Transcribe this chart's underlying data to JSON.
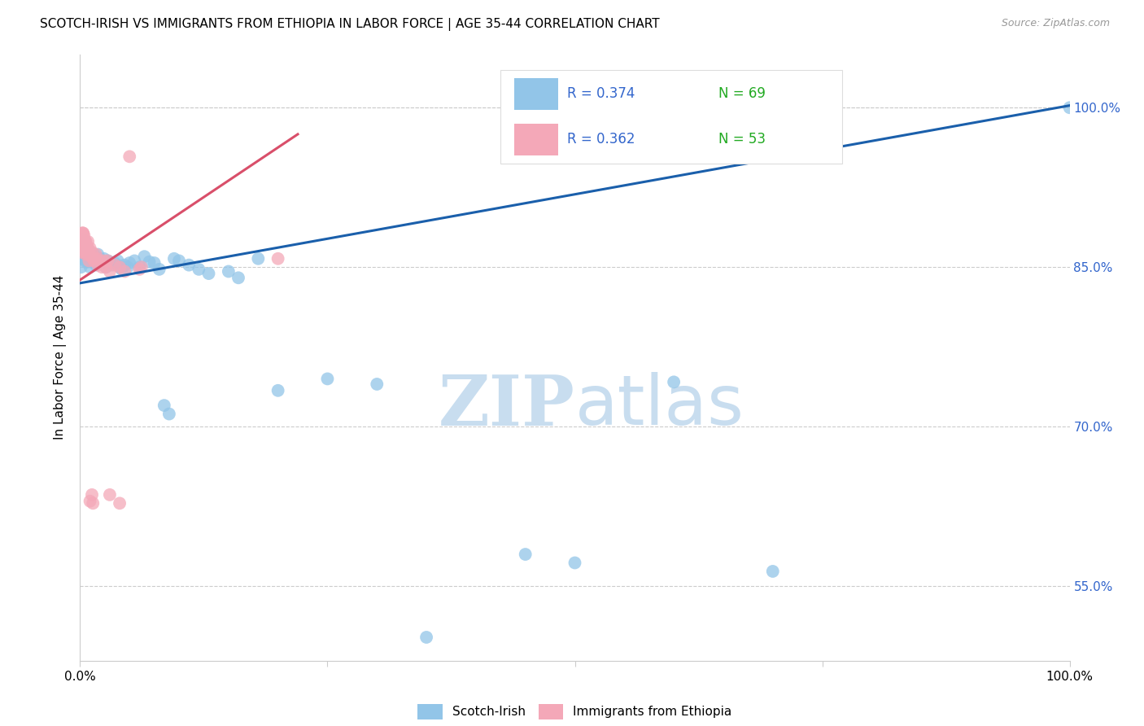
{
  "title": "SCOTCH-IRISH VS IMMIGRANTS FROM ETHIOPIA IN LABOR FORCE | AGE 35-44 CORRELATION CHART",
  "source": "Source: ZipAtlas.com",
  "ylabel": "In Labor Force | Age 35-44",
  "legend_r_blue": "R = 0.374",
  "legend_n_blue": "N = 69",
  "legend_r_pink": "R = 0.362",
  "legend_n_pink": "N = 53",
  "legend_label_blue": "Scotch-Irish",
  "legend_label_pink": "Immigrants from Ethiopia",
  "blue_color": "#92C5E8",
  "pink_color": "#F4A8B8",
  "blue_line_color": "#1A5FAB",
  "pink_line_color": "#D94F6A",
  "r_text_color": "#3366CC",
  "n_text_color": "#22AA22",
  "watermark_color": "#C8DDEF",
  "grid_color": "#CCCCCC",
  "xmin": 0.0,
  "xmax": 100.0,
  "ymin": 48.0,
  "ymax": 105.0,
  "yticks": [
    55.0,
    70.0,
    85.0,
    100.0
  ],
  "ytick_labels": [
    "55.0%",
    "70.0%",
    "85.0%",
    "100.0%"
  ],
  "blue_trend_x": [
    0.0,
    100.0
  ],
  "blue_trend_y": [
    83.5,
    100.2
  ],
  "pink_trend_x": [
    0.0,
    22.0
  ],
  "pink_trend_y": [
    83.8,
    97.5
  ],
  "blue_x": [
    0.1,
    0.2,
    0.2,
    0.3,
    0.3,
    0.4,
    0.4,
    0.5,
    0.5,
    0.5,
    0.6,
    0.6,
    0.7,
    0.7,
    0.7,
    0.8,
    0.8,
    0.9,
    0.9,
    1.0,
    1.0,
    1.1,
    1.2,
    1.3,
    1.4,
    1.5,
    1.6,
    1.7,
    1.8,
    1.9,
    2.0,
    2.2,
    2.4,
    2.6,
    2.8,
    3.0,
    3.2,
    3.5,
    3.8,
    4.0,
    4.2,
    4.5,
    4.8,
    5.0,
    5.5,
    6.0,
    6.5,
    7.0,
    7.5,
    8.0,
    8.5,
    9.0,
    9.5,
    10.0,
    11.0,
    12.0,
    13.0,
    15.0,
    16.0,
    18.0,
    20.0,
    25.0,
    30.0,
    35.0,
    45.0,
    50.0,
    60.0,
    70.0,
    100.0
  ],
  "blue_y": [
    85.0,
    87.6,
    85.8,
    87.2,
    86.4,
    86.5,
    87.0,
    86.0,
    86.8,
    87.4,
    85.5,
    86.8,
    85.6,
    86.2,
    86.8,
    85.5,
    86.0,
    85.7,
    86.4,
    85.0,
    85.6,
    85.8,
    85.5,
    85.7,
    86.2,
    85.5,
    85.2,
    85.8,
    86.2,
    85.6,
    85.8,
    85.4,
    85.8,
    85.0,
    85.6,
    85.5,
    85.2,
    85.4,
    85.6,
    85.0,
    84.8,
    85.2,
    85.0,
    85.4,
    85.6,
    85.0,
    86.0,
    85.5,
    85.4,
    84.8,
    72.0,
    71.2,
    85.8,
    85.6,
    85.2,
    84.8,
    84.4,
    84.6,
    84.0,
    85.8,
    73.4,
    74.5,
    74.0,
    50.2,
    58.0,
    57.2,
    74.2,
    56.4,
    100.0
  ],
  "pink_x": [
    0.1,
    0.1,
    0.1,
    0.2,
    0.2,
    0.2,
    0.3,
    0.3,
    0.3,
    0.3,
    0.4,
    0.4,
    0.4,
    0.5,
    0.5,
    0.5,
    0.6,
    0.6,
    0.6,
    0.7,
    0.7,
    0.8,
    0.8,
    0.9,
    0.9,
    1.0,
    1.0,
    1.1,
    1.2,
    1.3,
    1.4,
    1.5,
    1.6,
    1.7,
    1.8,
    2.0,
    2.2,
    2.4,
    2.6,
    2.8,
    3.0,
    3.5,
    4.0,
    4.5,
    5.0,
    6.0,
    6.2,
    3.0,
    4.0,
    1.0,
    1.2,
    1.3,
    20.0
  ],
  "pink_y": [
    87.6,
    87.0,
    86.4,
    88.2,
    87.6,
    87.0,
    88.2,
    87.6,
    87.0,
    88.2,
    88.0,
    87.4,
    86.8,
    87.5,
    87.0,
    86.4,
    87.4,
    86.8,
    86.2,
    86.9,
    86.3,
    87.4,
    86.8,
    86.2,
    85.6,
    86.8,
    86.2,
    86.0,
    86.4,
    85.8,
    85.6,
    85.8,
    86.2,
    85.8,
    85.2,
    85.6,
    85.0,
    85.6,
    85.0,
    85.6,
    84.6,
    85.2,
    85.0,
    84.6,
    95.4,
    84.8,
    85.0,
    63.6,
    62.8,
    63.0,
    63.6,
    62.8,
    85.8
  ]
}
